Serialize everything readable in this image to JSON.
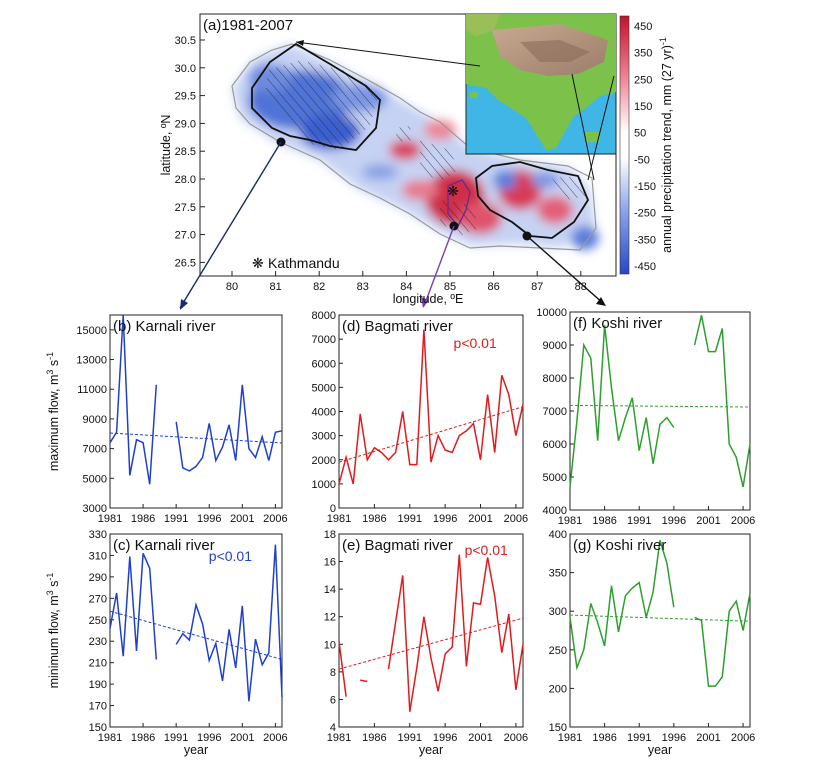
{
  "map": {
    "title": "(a)",
    "period": "1981-2007",
    "xlabel": "longitude, ºE",
    "ylabel": "latitude, ºN",
    "x_ticks": [
      "80",
      "81",
      "82",
      "83",
      "84",
      "85",
      "86",
      "87",
      "88"
    ],
    "y_ticks": [
      "26.5",
      "27.0",
      "27.5",
      "28.0",
      "28.5",
      "29.0",
      "29.5",
      "30.0",
      "30.5"
    ],
    "colorbar_label": "annual precipitation trend, mm (27 yr)",
    "colorbar_label_sup": "-1",
    "colorbar_ticks": [
      "450",
      "350",
      "250",
      "150",
      "50",
      "-50",
      "-150",
      "-250",
      "-350",
      "-450"
    ],
    "city_label": "Kathmandu",
    "city_symbol": "❋",
    "colors": {
      "wet": "#d42f4a",
      "dry": "#4a6fd4",
      "ocean": "#3fb6e6",
      "land": "#7cc24a",
      "plateau": "#b59a86"
    }
  },
  "chart_data": [
    {
      "id": "b",
      "type": "line",
      "panel_label": "(b)",
      "title": "Karnali river",
      "ylabel": "maximum flow, m",
      "ylabel_unit": "3 s",
      "ylabel_exp": "-1",
      "xlabel": "",
      "ylim": [
        3000,
        16000
      ],
      "yticks": [
        3000,
        5000,
        7000,
        9000,
        11000,
        13000,
        15000
      ],
      "xlim": [
        1981,
        2007
      ],
      "xticks": [
        1981,
        1986,
        1991,
        1996,
        2001,
        2006
      ],
      "color": "#1f3fd0",
      "pvalue": "",
      "x": [
        1981,
        1982,
        1983,
        1984,
        1985,
        1986,
        1987,
        1988,
        1989,
        1990,
        1991,
        1992,
        1993,
        1994,
        1995,
        1996,
        1997,
        1998,
        1999,
        2000,
        2001,
        2002,
        2003,
        2004,
        2005,
        2006,
        2007
      ],
      "values": [
        7400,
        8100,
        16000,
        5200,
        7600,
        7400,
        4600,
        11300,
        null,
        null,
        8800,
        5700,
        5500,
        5800,
        6400,
        8700,
        6200,
        7100,
        8600,
        6200,
        11300,
        7000,
        6400,
        7800,
        6200,
        8100,
        8200
      ],
      "trend": [
        8050,
        7380
      ]
    },
    {
      "id": "c",
      "type": "line",
      "panel_label": "(c)",
      "title": "Karnali river",
      "ylabel": "minimum flow, m",
      "ylabel_unit": "3 s",
      "ylabel_exp": "-1",
      "xlabel": "year",
      "ylim": [
        150,
        330
      ],
      "yticks": [
        150,
        170,
        190,
        210,
        230,
        250,
        270,
        290,
        310,
        330
      ],
      "xlim": [
        1981,
        2007
      ],
      "xticks": [
        1981,
        1986,
        1991,
        1996,
        2001,
        2006
      ],
      "color": "#1f3fd0",
      "pvalue": "p<0.01",
      "x": [
        1981,
        1982,
        1983,
        1984,
        1985,
        1986,
        1987,
        1988,
        1989,
        1990,
        1991,
        1992,
        1993,
        1994,
        1995,
        1996,
        1997,
        1998,
        1999,
        2000,
        2001,
        2002,
        2003,
        2004,
        2005,
        2006,
        2007
      ],
      "values": [
        242,
        275,
        216,
        309,
        221,
        312,
        298,
        213,
        null,
        null,
        227,
        237,
        231,
        264,
        246,
        212,
        228,
        193,
        241,
        205,
        263,
        174,
        232,
        208,
        219,
        320,
        178
      ],
      "trend": [
        258,
        213
      ]
    },
    {
      "id": "d",
      "type": "line",
      "panel_label": "(d)",
      "title": "Bagmati river",
      "ylabel": "",
      "xlabel": "",
      "ylim": [
        0,
        8000
      ],
      "yticks": [
        0,
        1000,
        2000,
        3000,
        4000,
        5000,
        6000,
        7000,
        8000
      ],
      "xlim": [
        1981,
        2007
      ],
      "xticks": [
        1981,
        1986,
        1991,
        1996,
        2001,
        2006
      ],
      "color": "#e31a1c",
      "pvalue": "p<0.01",
      "x": [
        1981,
        1982,
        1983,
        1984,
        1985,
        1986,
        1987,
        1988,
        1989,
        1990,
        1991,
        1992,
        1993,
        1994,
        1995,
        1996,
        1997,
        1998,
        1999,
        2000,
        2001,
        2002,
        2003,
        2004,
        2005,
        2006,
        2007
      ],
      "values": [
        1000,
        2100,
        1000,
        3900,
        2000,
        2500,
        2300,
        2000,
        2300,
        4000,
        1800,
        1800,
        7400,
        1900,
        3000,
        2400,
        2300,
        3000,
        3200,
        3500,
        2000,
        4700,
        2300,
        5500,
        4700,
        3000,
        4300
      ],
      "trend": [
        1900,
        4200
      ]
    },
    {
      "id": "e",
      "type": "line",
      "panel_label": "(e)",
      "title": "Bagmati river",
      "ylabel": "",
      "xlabel": "year",
      "ylim": [
        4,
        18
      ],
      "yticks": [
        4,
        6,
        8,
        10,
        12,
        14,
        16,
        18
      ],
      "xlim": [
        1981,
        2007
      ],
      "xticks": [
        1981,
        1986,
        1991,
        1996,
        2001,
        2006
      ],
      "color": "#e31a1c",
      "pvalue": "p<0.01",
      "x": [
        1981,
        1982,
        1983,
        1984,
        1985,
        1986,
        1987,
        1988,
        1989,
        1990,
        1991,
        1992,
        1993,
        1994,
        1995,
        1996,
        1997,
        1998,
        1999,
        2000,
        2001,
        2002,
        2003,
        2004,
        2005,
        2006,
        2007
      ],
      "values": [
        10.2,
        6.2,
        null,
        7.4,
        7.3,
        null,
        null,
        8.2,
        11.6,
        15.0,
        5.1,
        8.3,
        12.0,
        9.0,
        6.6,
        9.3,
        9.8,
        16.5,
        8.4,
        13.0,
        12.9,
        16.3,
        13.5,
        9.4,
        12.2,
        6.7,
        10.0
      ],
      "trend": [
        8.2,
        11.9
      ]
    },
    {
      "id": "f",
      "type": "line",
      "panel_label": "(f)",
      "title": "Koshi river",
      "ylabel": "",
      "xlabel": "",
      "ylim": [
        4000,
        10000
      ],
      "yticks": [
        4000,
        5000,
        6000,
        7000,
        8000,
        9000,
        10000
      ],
      "xlim": [
        1981,
        2007
      ],
      "xticks": [
        1981,
        1986,
        1991,
        1996,
        2001,
        2006
      ],
      "color": "#2ca02c",
      "pvalue": "",
      "x": [
        1981,
        1982,
        1983,
        1984,
        1985,
        1986,
        1987,
        1988,
        1989,
        1990,
        1991,
        1992,
        1993,
        1994,
        1995,
        1996,
        1997,
        1998,
        1999,
        2000,
        2001,
        2002,
        2003,
        2004,
        2005,
        2006,
        2007
      ],
      "values": [
        4700,
        6700,
        9000,
        8600,
        6100,
        9600,
        7700,
        6100,
        6800,
        7400,
        5800,
        6800,
        5400,
        6600,
        6800,
        6500,
        null,
        null,
        9000,
        9900,
        8800,
        8800,
        9500,
        6000,
        5600,
        4700,
        6000
      ],
      "trend": [
        7170,
        7120
      ]
    },
    {
      "id": "g",
      "type": "line",
      "panel_label": "(g)",
      "title": "Koshi river",
      "ylabel": "",
      "xlabel": "year",
      "ylim": [
        150,
        400
      ],
      "yticks": [
        150,
        200,
        250,
        300,
        350,
        400
      ],
      "xlim": [
        1981,
        2007
      ],
      "xticks": [
        1981,
        1986,
        1991,
        1996,
        2001,
        2006
      ],
      "color": "#2ca02c",
      "pvalue": "",
      "x": [
        1981,
        1982,
        1983,
        1984,
        1985,
        1986,
        1987,
        1988,
        1989,
        1990,
        1991,
        1992,
        1993,
        1994,
        1995,
        1996,
        1997,
        1998,
        1999,
        2000,
        2001,
        2002,
        2003,
        2004,
        2005,
        2006,
        2007
      ],
      "values": [
        292,
        227,
        250,
        310,
        285,
        255,
        333,
        273,
        320,
        330,
        337,
        292,
        325,
        392,
        362,
        305,
        null,
        null,
        292,
        288,
        203,
        203,
        215,
        300,
        313,
        275,
        323
      ],
      "trend": [
        295,
        287
      ]
    }
  ]
}
